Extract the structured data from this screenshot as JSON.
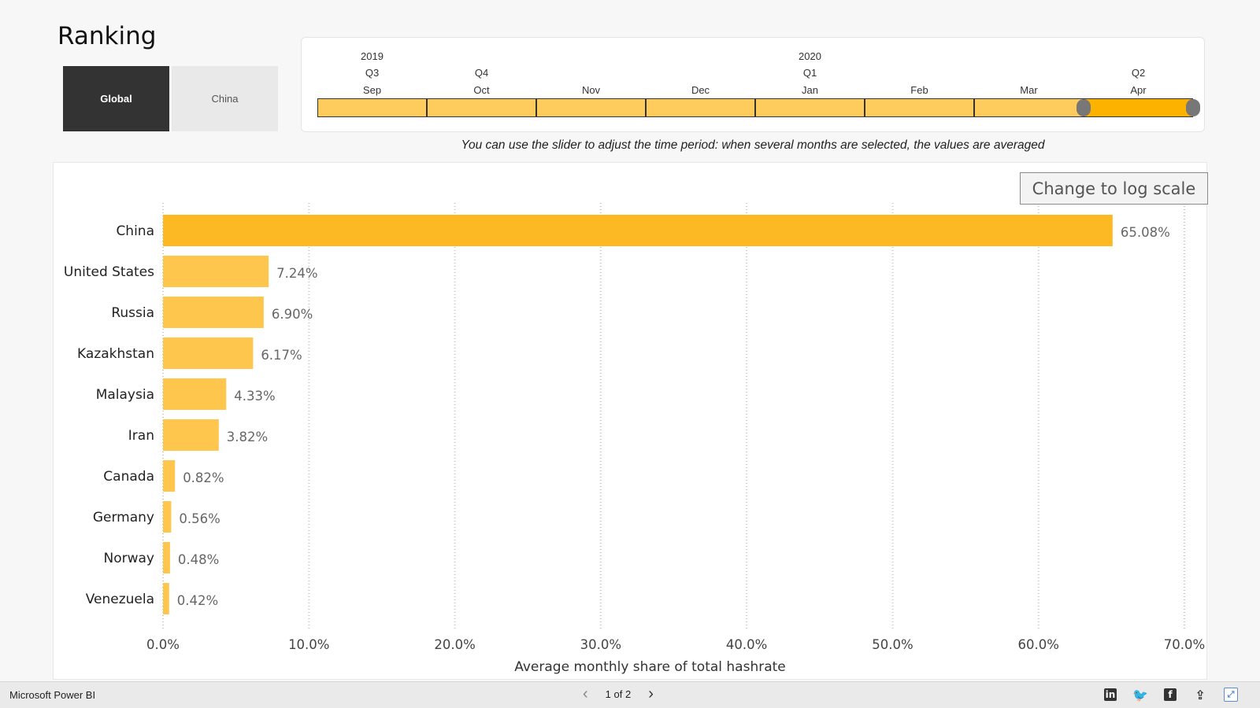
{
  "header": {
    "title": "Ranking"
  },
  "toggle": {
    "global_label": "Global",
    "china_label": "China",
    "selected": "Global"
  },
  "slider": {
    "years": [
      "2019",
      "2020"
    ],
    "quarters": [
      "Q3",
      "Q4",
      "Q1",
      "Q2"
    ],
    "months": [
      "Sep",
      "Oct",
      "Nov",
      "Dec",
      "Jan",
      "Feb",
      "Mar",
      "Apr"
    ],
    "selected_months": [
      "Apr"
    ],
    "hint": "You can use the slider to adjust the time period: when several months are selected, the values are averaged",
    "colors": {
      "unselected": "#fecc5c",
      "selected": "#fdb200",
      "handle": "#777777"
    }
  },
  "log_button": {
    "label": "Change to log scale"
  },
  "chart_data": {
    "type": "bar",
    "orientation": "horizontal",
    "categories": [
      "China",
      "United States",
      "Russia",
      "Kazakhstan",
      "Malaysia",
      "Iran",
      "Canada",
      "Germany",
      "Norway",
      "Venezuela"
    ],
    "values": [
      65.08,
      7.24,
      6.9,
      6.17,
      4.33,
      3.82,
      0.82,
      0.56,
      0.48,
      0.42
    ],
    "value_labels": [
      "65.08%",
      "7.24%",
      "6.90%",
      "6.17%",
      "4.33%",
      "3.82%",
      "0.82%",
      "0.56%",
      "0.48%",
      "0.42%"
    ],
    "xlabel": "Average monthly share of total hashrate",
    "xlim": [
      0,
      70
    ],
    "ticks": [
      0,
      10,
      20,
      30,
      40,
      50,
      60,
      70
    ],
    "tick_labels": [
      "0.0%",
      "10.0%",
      "20.0%",
      "30.0%",
      "40.0%",
      "50.0%",
      "60.0%",
      "70.0%"
    ],
    "grid": "vertical dashed",
    "colors": {
      "top_bar": "#fdb924",
      "bar": "#fec64c"
    }
  },
  "footer": {
    "brand": "Microsoft Power BI",
    "page_indicator": "1 of 2",
    "icons": [
      "linkedin-icon",
      "twitter-icon",
      "facebook-icon",
      "share-icon",
      "fullscreen-icon"
    ]
  }
}
